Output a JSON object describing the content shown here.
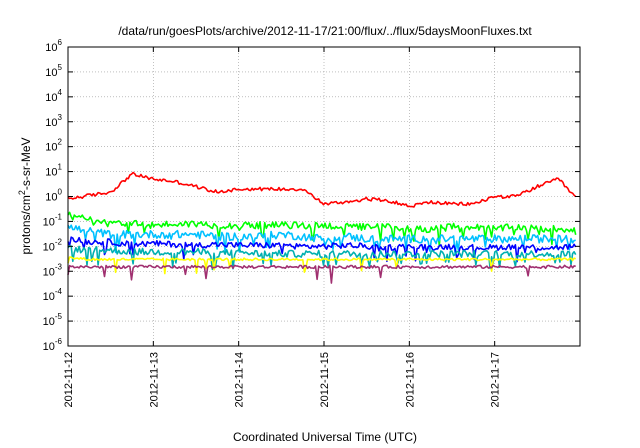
{
  "chart_data": {
    "type": "line",
    "title": "/data/run/goesPlots/archive/2012-11-17/21:00/flux/../flux/5daysMoonFluxes.txt",
    "xlabel": "Coordinated Universal Time (UTC)",
    "ylabel": "protons/cm²-s-sr-MeV",
    "ylabel_parts": {
      "pre": "protons/cm",
      "sup": "2",
      "post": "-s-sr-MeV"
    },
    "yscale": "log",
    "ylim_exponent": [
      -6,
      6
    ],
    "y_tick_exponents": [
      6,
      5,
      4,
      3,
      2,
      1,
      0,
      -1,
      -2,
      -3,
      -4,
      -5,
      -6
    ],
    "xlim_days": [
      0,
      6
    ],
    "x_ticks": [
      {
        "pos": 0,
        "label": "2012-11-12"
      },
      {
        "pos": 1,
        "label": "2012-11-13"
      },
      {
        "pos": 2,
        "label": "2012-11-14"
      },
      {
        "pos": 3,
        "label": "2012-11-15"
      },
      {
        "pos": 4,
        "label": "2012-11-16"
      },
      {
        "pos": 5,
        "label": "2012-11-17"
      }
    ],
    "grid": true,
    "x_days": [
      0.0,
      0.25,
      0.5,
      0.75,
      1.0,
      1.25,
      1.5,
      1.75,
      2.0,
      2.25,
      2.5,
      2.75,
      3.0,
      3.25,
      3.5,
      3.75,
      4.0,
      4.25,
      4.5,
      4.75,
      5.0,
      5.25,
      5.5,
      5.75,
      5.95
    ],
    "series": [
      {
        "color": "#ff0000",
        "values": [
          0.8,
          1.1,
          1.5,
          8,
          5,
          4,
          2.5,
          1.5,
          2,
          2,
          2,
          2,
          0.5,
          0.6,
          0.8,
          0.7,
          0.4,
          0.6,
          0.5,
          0.5,
          1.0,
          1.0,
          2.5,
          5,
          0.9
        ]
      },
      {
        "color": "#00ff00",
        "values": [
          0.18,
          0.12,
          0.1,
          0.08,
          0.07,
          0.08,
          0.08,
          0.07,
          0.07,
          0.07,
          0.07,
          0.07,
          0.07,
          0.06,
          0.06,
          0.06,
          0.05,
          0.05,
          0.06,
          0.06,
          0.05,
          0.06,
          0.05,
          0.05,
          0.05
        ]
      },
      {
        "color": "#00c0ff",
        "values": [
          0.06,
          0.04,
          0.03,
          0.03,
          0.03,
          0.03,
          0.03,
          0.025,
          0.025,
          0.025,
          0.03,
          0.025,
          0.02,
          0.025,
          0.02,
          0.02,
          0.02,
          0.02,
          0.02,
          0.02,
          0.02,
          0.02,
          0.02,
          0.02,
          0.02
        ]
      },
      {
        "color": "#0000ff",
        "values": [
          0.02,
          0.015,
          0.015,
          0.012,
          0.013,
          0.012,
          0.011,
          0.012,
          0.011,
          0.011,
          0.011,
          0.01,
          0.01,
          0.011,
          0.01,
          0.009,
          0.01,
          0.009,
          0.01,
          0.009,
          0.009,
          0.01,
          0.009,
          0.009,
          0.01
        ]
      },
      {
        "color": "#00b0b0",
        "values": [
          0.008,
          0.007,
          0.007,
          0.006,
          0.006,
          0.006,
          0.006,
          0.005,
          0.006,
          0.005,
          0.005,
          0.005,
          0.005,
          0.005,
          0.005,
          0.005,
          0.005,
          0.005,
          0.005,
          0.005,
          0.005,
          0.005,
          0.005,
          0.005,
          0.005
        ]
      },
      {
        "color": "#ffff00",
        "values": [
          0.0035,
          0.003,
          0.003,
          0.003,
          0.003,
          0.003,
          0.003,
          0.003,
          0.003,
          0.003,
          0.003,
          0.003,
          0.003,
          0.003,
          0.003,
          0.003,
          0.003,
          0.003,
          0.003,
          0.003,
          0.003,
          0.003,
          0.003,
          0.003,
          0.003
        ]
      },
      {
        "color": "#a03070",
        "values": [
          0.0015,
          0.0015,
          0.0015,
          0.0015,
          0.0015,
          0.0015,
          0.0015,
          0.0015,
          0.0015,
          0.0015,
          0.0015,
          0.0015,
          0.0015,
          0.0015,
          0.0015,
          0.0015,
          0.0015,
          0.0015,
          0.0015,
          0.0015,
          0.0015,
          0.0015,
          0.0015,
          0.0015,
          0.0015
        ]
      }
    ]
  }
}
